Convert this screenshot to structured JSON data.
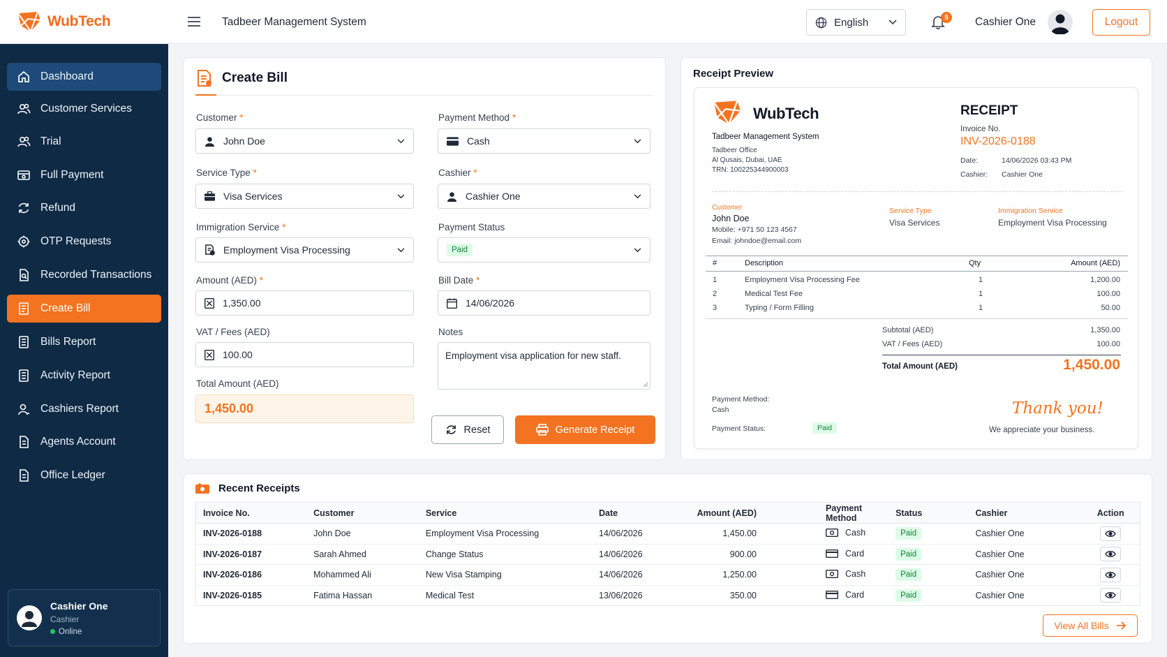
{
  "brand": {
    "name": "WubTech",
    "color": "#f47320"
  },
  "header": {
    "system_name": "Tadbeer Management System",
    "language": "English",
    "notification_count": "5",
    "user_name": "Cashier One",
    "logout_label": "Logout"
  },
  "sidebar": {
    "items": [
      {
        "label": "Dashboard",
        "icon": "home-icon"
      },
      {
        "label": "Customer Services",
        "icon": "users-icon"
      },
      {
        "label": "Trial",
        "icon": "users-icon"
      },
      {
        "label": "Full Payment",
        "icon": "payment-icon"
      },
      {
        "label": "Refund",
        "icon": "refund-icon"
      },
      {
        "label": "OTP Requests",
        "icon": "otp-icon"
      },
      {
        "label": "Recorded Transactions",
        "icon": "document-search-icon"
      },
      {
        "label": "Create Bill",
        "icon": "bill-icon"
      },
      {
        "label": "Bills Report",
        "icon": "report-icon"
      },
      {
        "label": "Activity Report",
        "icon": "report-icon"
      },
      {
        "label": "Cashiers Report",
        "icon": "user-icon"
      },
      {
        "label": "Agents Account",
        "icon": "ledger-icon"
      },
      {
        "label": "Office Ledger",
        "icon": "ledger-icon"
      }
    ],
    "user_card": {
      "name": "Cashier One",
      "role": "Cashier",
      "status": "Online"
    }
  },
  "create_bill": {
    "title": "Create Bill",
    "customer_label": "Customer",
    "customer_value": "John Doe",
    "payment_method_label": "Payment Method",
    "payment_method_value": "Cash",
    "service_type_label": "Service Type",
    "service_type_value": "Visa Services",
    "cashier_label": "Cashier",
    "cashier_value": "Cashier One",
    "immigration_service_label": "Immigration Service",
    "immigration_service_value": "Employment Visa Processing",
    "payment_status_label": "Payment Status",
    "payment_status_value": "Paid",
    "amount_label": "Amount (AED)",
    "amount_value": "1,350.00",
    "bill_date_label": "Bill Date",
    "bill_date_value": "14/06/2026",
    "vat_label": "VAT / Fees (AED)",
    "vat_value": "100.00",
    "notes_label": "Notes",
    "notes_value": "Employment visa application for new staff.",
    "total_label": "Total Amount (AED)",
    "total_value": "1,450.00",
    "reset_label": "Reset",
    "generate_label": "Generate Receipt"
  },
  "receipt": {
    "panel_title": "Receipt Preview",
    "brand": "WubTech",
    "system_name": "Tadbeer Management System",
    "office": "Tadbeer Office",
    "address": "Al Qusais, Dubai, UAE",
    "trn": "TRN: 100225344900003",
    "heading": "RECEIPT",
    "invoice_label": "Invoice No.",
    "invoice_no": "INV-2026-0188",
    "date_label": "Date:",
    "date_value": "14/06/2026 03:43 PM",
    "cashier_label": "Cashier:",
    "cashier_value": "Cashier One",
    "customer_label": "Customer",
    "customer_name": "John Doe",
    "mobile": "Mobile:  +971 50 123 4567",
    "email": "Email:  johndoe@email.com",
    "service_type_label": "Service Type",
    "service_type_value": "Visa Services",
    "immigration_label": "Immigration Service",
    "immigration_value": "Employment Visa Processing",
    "columns": [
      "#",
      "Description",
      "Qty",
      "Amount (AED)"
    ],
    "items": [
      {
        "n": "1",
        "desc": "Employment Visa Processing Fee",
        "qty": "1",
        "amount": "1,200.00"
      },
      {
        "n": "2",
        "desc": "Medical Test Fee",
        "qty": "1",
        "amount": "100.00"
      },
      {
        "n": "3",
        "desc": "Typing / Form Filling",
        "qty": "1",
        "amount": "50.00"
      }
    ],
    "subtotal_label": "Subtotal (AED)",
    "subtotal_value": "1,350.00",
    "vat_label": "VAT / Fees (AED)",
    "vat_value": "100.00",
    "total_label": "Total Amount (AED)",
    "total_value": "1,450.00",
    "payment_method_label": "Payment Method:",
    "payment_method_value": "Cash",
    "payment_status_label": "Payment Status:",
    "payment_status_value": "Paid",
    "thank_you": "Thank you!",
    "appreciate": "We appreciate your business."
  },
  "recent": {
    "title": "Recent Receipts",
    "columns": [
      "Invoice No.",
      "Customer",
      "Service",
      "Date",
      "Amount (AED)",
      "Payment Method",
      "Status",
      "Cashier",
      "Action"
    ],
    "rows": [
      {
        "invoice": "INV-2026-0188",
        "customer": "John Doe",
        "service": "Employment Visa Processing",
        "date": "14/06/2026",
        "amount": "1,450.00",
        "method": "Cash",
        "method_icon": "cash-icon",
        "status": "Paid",
        "cashier": "Cashier One"
      },
      {
        "invoice": "INV-2026-0187",
        "customer": "Sarah Ahmed",
        "service": "Change Status",
        "date": "14/06/2026",
        "amount": "900.00",
        "method": "Card",
        "method_icon": "card-icon",
        "status": "Paid",
        "cashier": "Cashier One"
      },
      {
        "invoice": "INV-2026-0186",
        "customer": "Mohammed Ali",
        "service": "New Visa Stamping",
        "date": "14/06/2026",
        "amount": "1,250.00",
        "method": "Cash",
        "method_icon": "cash-icon",
        "status": "Paid",
        "cashier": "Cashier One"
      },
      {
        "invoice": "INV-2026-0185",
        "customer": "Fatima Hassan",
        "service": "Medical Test",
        "date": "13/06/2026",
        "amount": "350.00",
        "method": "Card",
        "method_icon": "card-icon",
        "status": "Paid",
        "cashier": "Cashier One"
      }
    ],
    "view_all_label": "View All Bills"
  }
}
